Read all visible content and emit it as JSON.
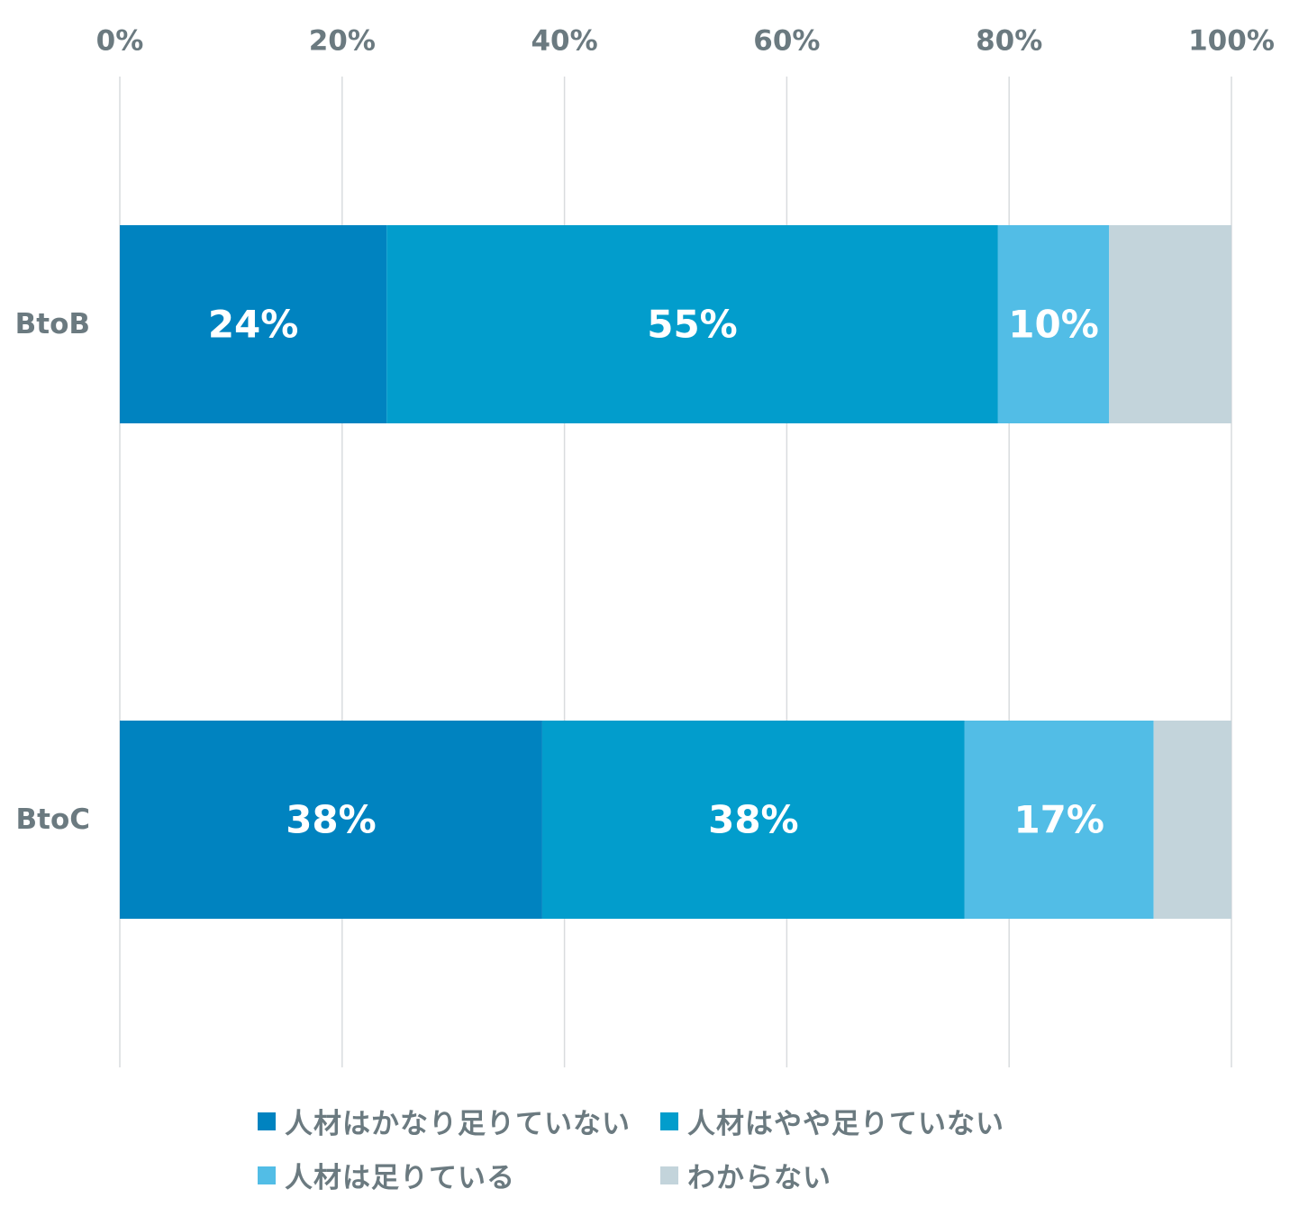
{
  "chart_data": {
    "type": "bar",
    "orientation": "horizontal",
    "stacked": true,
    "percent": true,
    "title": "",
    "xlabel": "",
    "ylabel": "",
    "xlim": [
      0,
      100
    ],
    "x_ticks": [
      "0%",
      "20%",
      "40%",
      "60%",
      "80%",
      "100%"
    ],
    "grid": true,
    "legend_position": "bottom",
    "categories": [
      "BtoB",
      "BtoC"
    ],
    "series": [
      {
        "name": "人材はかなり足りていない",
        "color": "#0083c0",
        "values": [
          24,
          38
        ],
        "labels": [
          "24%",
          "38%"
        ]
      },
      {
        "name": "人材はやや足りていない",
        "color": "#029dcc",
        "values": [
          55,
          38
        ],
        "labels": [
          "55%",
          "38%"
        ]
      },
      {
        "name": "人材は足りている",
        "color": "#52bde6",
        "values": [
          10,
          17
        ],
        "labels": [
          "10%",
          "17%"
        ]
      },
      {
        "name": "わからない",
        "color": "#c3d4db",
        "values": [
          11,
          8
        ],
        "labels": [
          "",
          ""
        ]
      }
    ]
  }
}
